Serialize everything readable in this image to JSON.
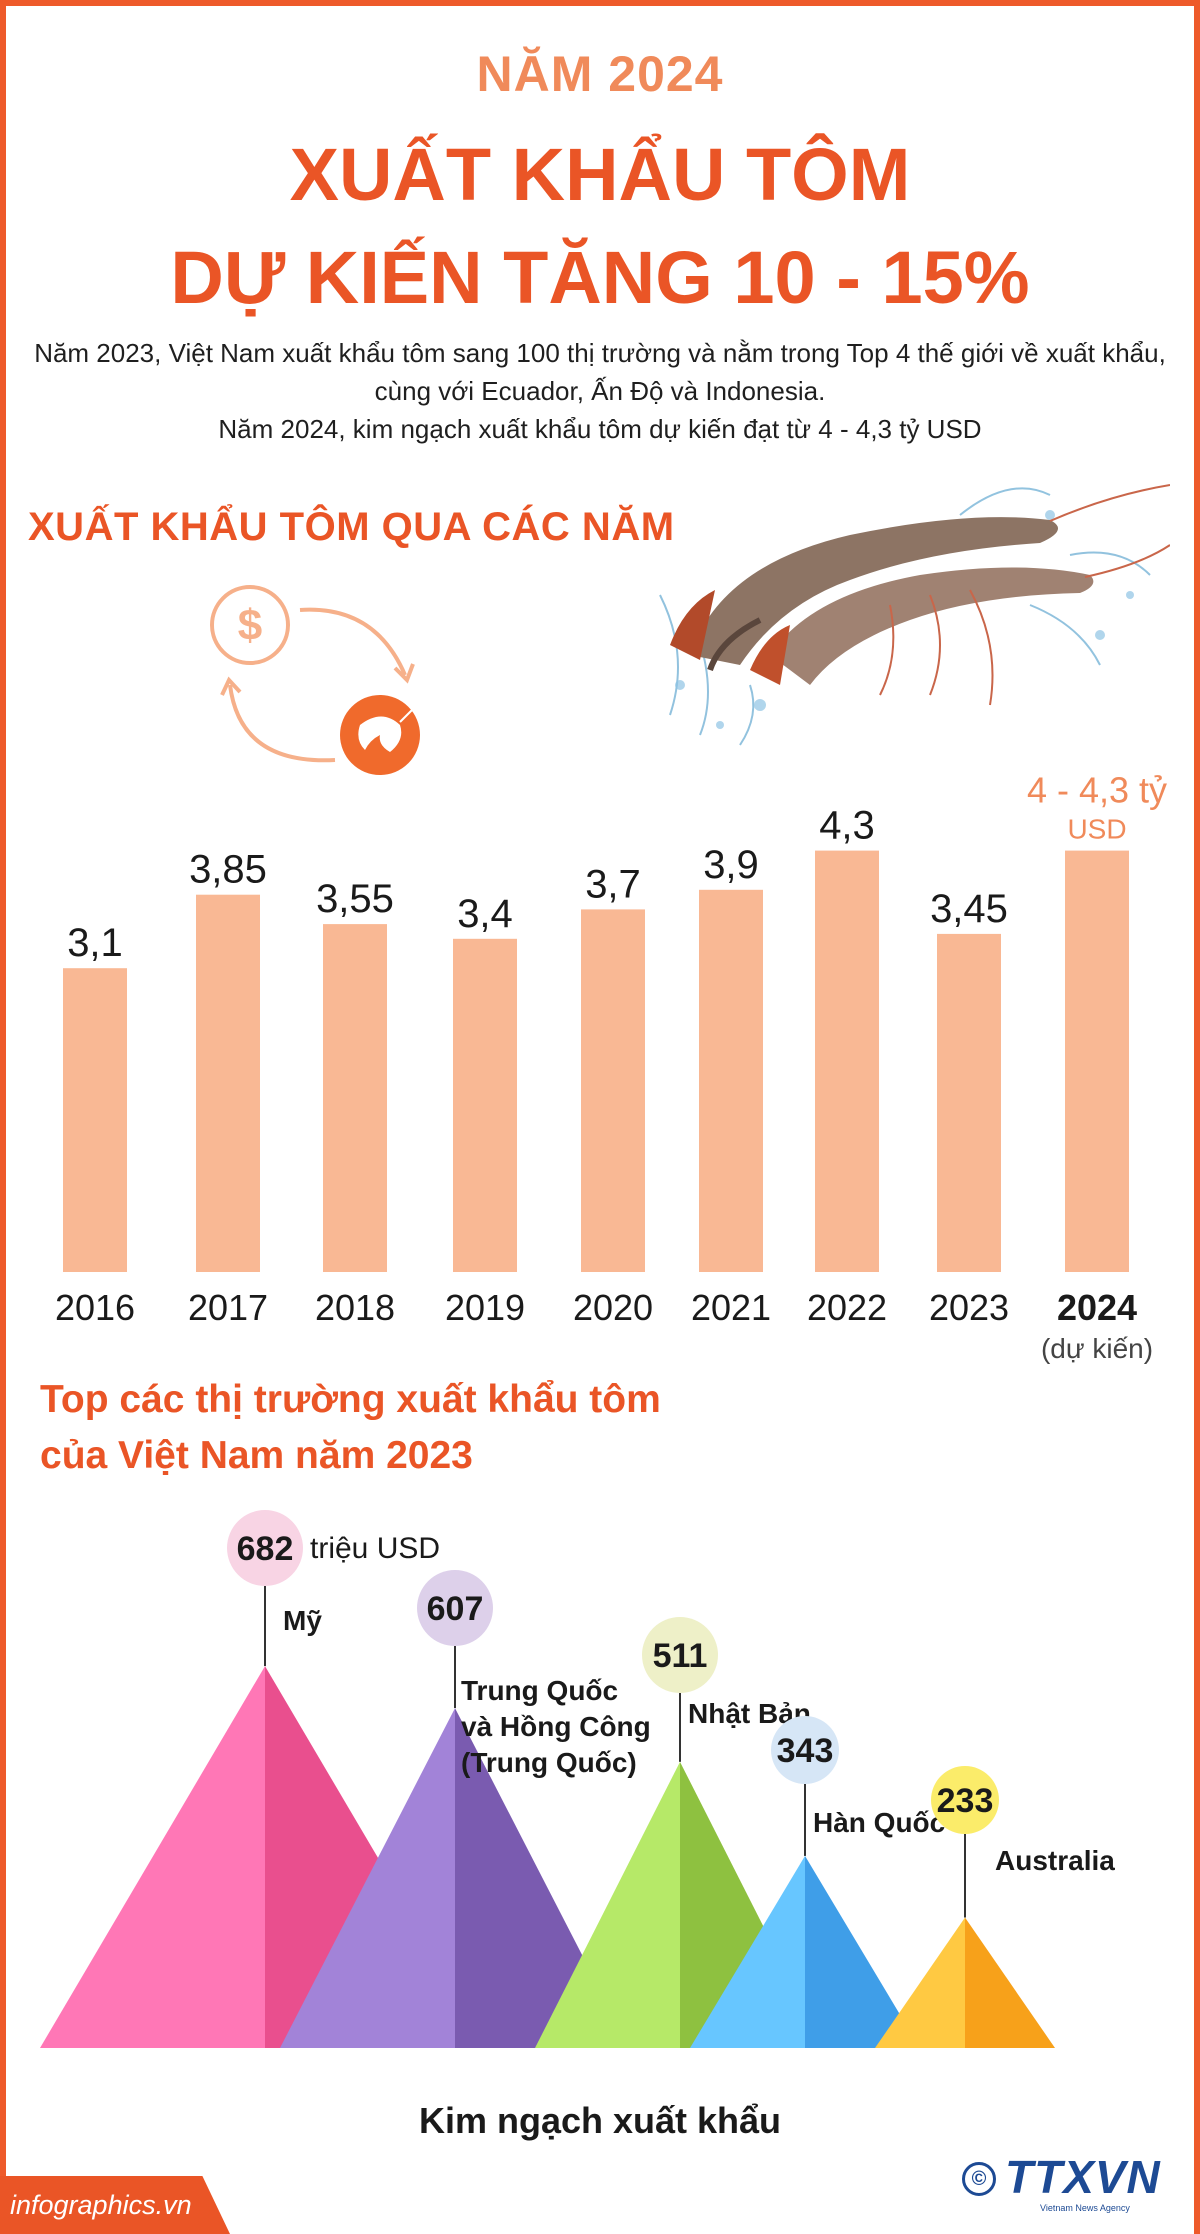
{
  "header": {
    "year_label": "NĂM 2024",
    "title_line1": "XUẤT KHẨU TÔM",
    "title_line2": "DỰ KIẾN TĂNG 10 - 15%"
  },
  "intro": {
    "paragraph1": "Năm 2023, Việt Nam xuất khẩu tôm sang 100 thị trường và nằm trong Top 4 thế giới về xuất khẩu, cùng với Ecuador, Ấn Độ và Indonesia.",
    "paragraph2": "Năm 2024, kim ngạch xuất khẩu tôm dự kiến đạt từ 4 - 4,3 tỷ USD"
  },
  "section_exports": {
    "title": "XUẤT KHẨU TÔM QUA CÁC NĂM",
    "icon_dollar": "dollar-coin-icon",
    "icon_shrimp": "shrimp-icon",
    "icon_cycle": "cycle-arrows-icon"
  },
  "section_markets": {
    "title_line1": "Top các thị trường xuất khẩu tôm",
    "title_line2": "của Việt Nam năm 2023",
    "bottom_label": "Kim ngạch xuất khẩu"
  },
  "footer": {
    "site": "infographics.vn",
    "agency": "TTXVN",
    "agency_sub": "Vietnam News Agency",
    "copyright": "©"
  },
  "colors": {
    "accent": "#ea5526",
    "bar": "#f9b894",
    "bar_label_2024": "#f08a5a"
  },
  "chart_data": [
    {
      "type": "bar",
      "categories": [
        "2016",
        "2017",
        "2018",
        "2019",
        "2020",
        "2021",
        "2022",
        "2023",
        "2024"
      ],
      "values": [
        3.1,
        3.85,
        3.55,
        3.4,
        3.7,
        3.9,
        4.3,
        3.45,
        4.3
      ],
      "value_labels": [
        "3,1",
        "3,85",
        "3,55",
        "3,4",
        "3,7",
        "3,9",
        "4,3",
        "3,45",
        "4 - 4,3 tỷ"
      ],
      "value_label_unit_2024": "USD",
      "category_note_2024": "(dự kiến)",
      "ylim": [
        0,
        4.6
      ],
      "grid": false
    },
    {
      "type": "bar",
      "categories": [
        "Mỹ",
        "Trung Quốc và Hồng Công (Trung Quốc)",
        "Nhật Bản",
        "Hàn Quốc",
        "Australia"
      ],
      "category_lines": [
        [
          "Mỹ"
        ],
        [
          "Trung Quốc",
          "và Hồng Công",
          "(Trung Quốc)"
        ],
        [
          "Nhật Bản"
        ],
        [
          "Hàn Quốc"
        ],
        [
          "Australia"
        ]
      ],
      "values": [
        682,
        607,
        511,
        343,
        233
      ],
      "value_labels": [
        "682",
        "607",
        "511",
        "343",
        "233"
      ],
      "unit_label": "triệu USD",
      "colors": [
        "#e94f8e",
        "#7a5bb0",
        "#8ec140",
        "#3f9ee8",
        "#f7a11a"
      ],
      "bubble_colors": [
        "#f8d4e4",
        "#ddd0ea",
        "#eef0c8",
        "#d6e6f6",
        "#fbec6a"
      ]
    }
  ]
}
